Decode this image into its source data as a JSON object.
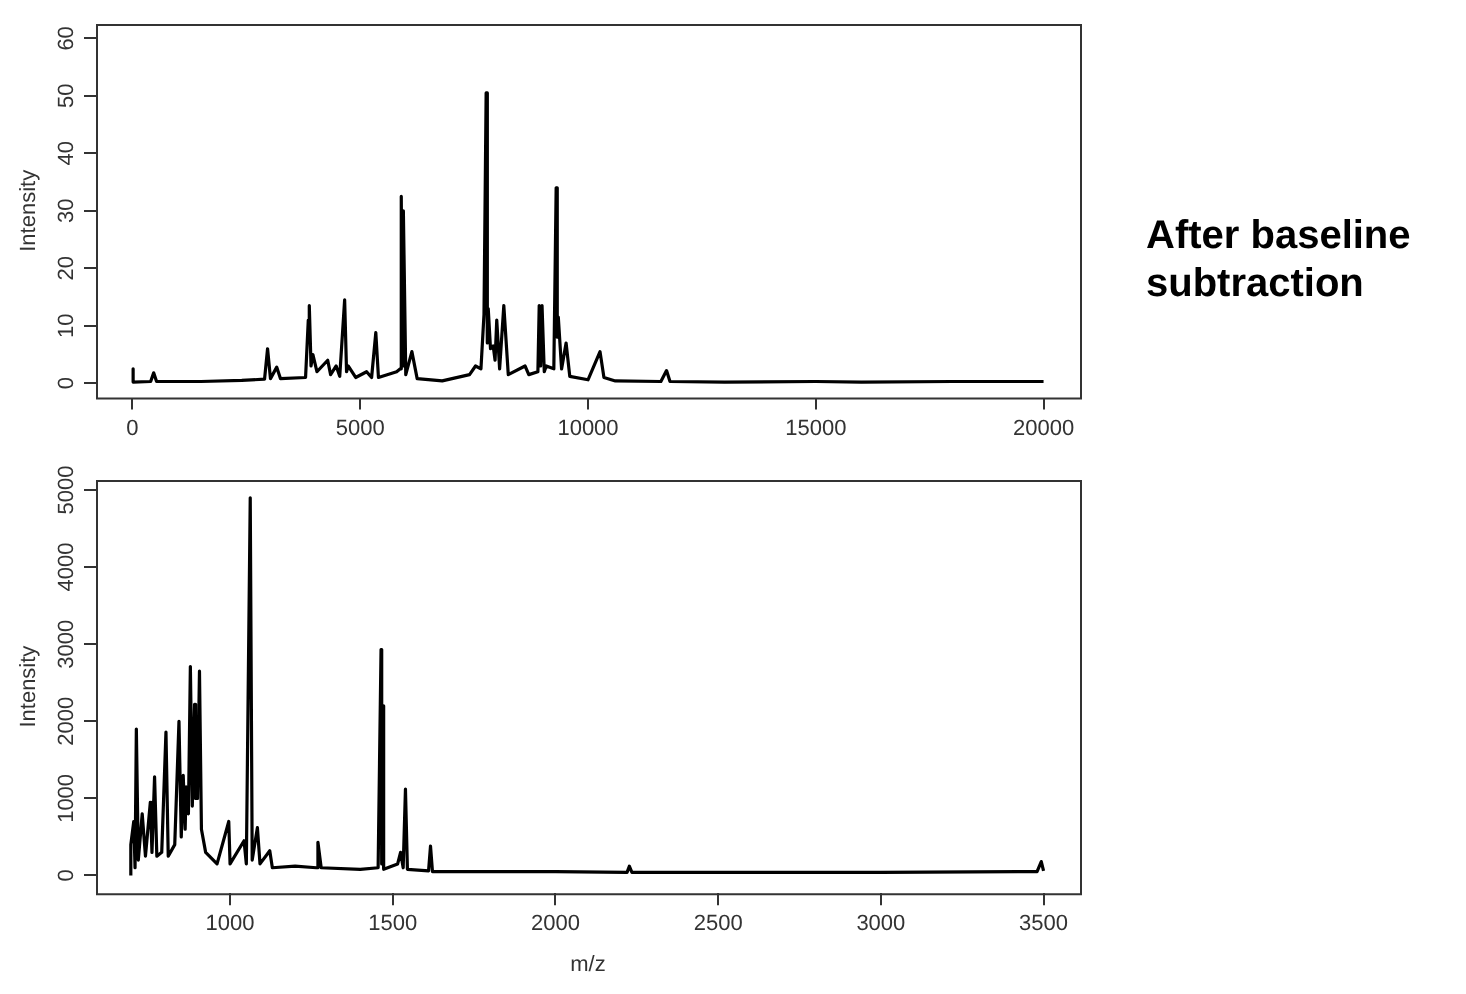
{
  "chart_data": [
    {
      "type": "line",
      "ylabel": "Intensity",
      "color": "#000000",
      "marker": "none",
      "grid": false,
      "legend": false,
      "annotations": [
        "After baseline subtraction"
      ],
      "xlim": [
        -800,
        20800
      ],
      "xticks": [
        0,
        5000,
        10000,
        15000,
        20000
      ],
      "ylim": [
        -2.5,
        62.5
      ],
      "yticks": [
        0,
        10,
        20,
        30,
        40,
        50,
        60
      ],
      "x": [
        0,
        0,
        30,
        400,
        466,
        530,
        1500,
        2400,
        2900,
        2966,
        3030,
        3168,
        3250,
        3800,
        3860,
        3882,
        3920,
        3960,
        4050,
        4286,
        4350,
        4472,
        4550,
        4658,
        4700,
        4736,
        4900,
        5140,
        5250,
        5342,
        5400,
        5800,
        5880,
        5901,
        5925,
        5947,
        6000,
        6134,
        6250,
        6800,
        7400,
        7531,
        7650,
        7717,
        7764,
        7790,
        7810,
        7860,
        7919,
        7960,
        7997,
        8060,
        8152,
        8250,
        8618,
        8700,
        8900,
        8929,
        8960,
        8991,
        9040,
        9084,
        9250,
        9301,
        9325,
        9348,
        9420,
        9519,
        9600,
        10000,
        10264,
        10350,
        10600,
        11600,
        11724,
        11800,
        13000,
        15000,
        16000,
        18000,
        20000
      ],
      "values": [
        0.2,
        2.5,
        0.2,
        0.3,
        1.8,
        0.3,
        0.3,
        0.5,
        0.7,
        6,
        0.8,
        2.8,
        0.8,
        1,
        11,
        13.5,
        3,
        5,
        2,
        4,
        1.5,
        3,
        1.2,
        14.5,
        2,
        3,
        1,
        2,
        1,
        8.8,
        1,
        2,
        2.5,
        32.5,
        3,
        30,
        1.5,
        5.5,
        0.8,
        0.4,
        1.5,
        3,
        2.5,
        12,
        50.5,
        7,
        13,
        6,
        6.5,
        4,
        11,
        2.5,
        13.5,
        1.5,
        3,
        1.5,
        2,
        13.5,
        3,
        13.5,
        2,
        3,
        2.5,
        34,
        8,
        11.5,
        2.5,
        7,
        1.2,
        0.6,
        5.5,
        1,
        0.4,
        0.3,
        2.2,
        0.3,
        0.2,
        0.3,
        0.2,
        0.3,
        0.3
      ]
    },
    {
      "type": "line",
      "xlabel": "m/z",
      "ylabel": "Intensity",
      "color": "#000000",
      "marker": "none",
      "grid": false,
      "legend": false,
      "xlim": [
        588,
        3612
      ],
      "xticks": [
        1000,
        1500,
        2000,
        2500,
        3000,
        3500
      ],
      "ylim": [
        -230,
        5130
      ],
      "yticks": [
        0,
        1000,
        2000,
        3000,
        4000,
        5000
      ],
      "x": [
        695,
        695,
        704,
        708,
        712,
        718,
        730,
        740,
        755,
        760,
        768,
        775,
        790,
        803,
        810,
        830,
        843,
        850,
        856,
        862,
        865,
        872,
        878,
        884,
        891,
        894,
        897,
        900,
        906,
        912,
        925,
        960,
        996,
        1000,
        1043,
        1050,
        1062,
        1068,
        1084,
        1092,
        1122,
        1130,
        1200,
        1265,
        1270,
        1280,
        1400,
        1455,
        1464,
        1466,
        1468,
        1472,
        1515,
        1524,
        1532,
        1539,
        1545,
        1610,
        1616,
        1622,
        2000,
        2220,
        2227,
        2235,
        3000,
        3480,
        3493,
        3500
      ],
      "values": [
        0,
        400,
        700,
        100,
        1900,
        200,
        800,
        250,
        950,
        300,
        1280,
        250,
        300,
        1860,
        250,
        400,
        2000,
        500,
        1300,
        600,
        1150,
        800,
        2710,
        900,
        2220,
        1000,
        1700,
        1000,
        2650,
        600,
        300,
        150,
        700,
        150,
        450,
        150,
        4900,
        200,
        620,
        150,
        320,
        100,
        120,
        100,
        430,
        100,
        80,
        100,
        2930,
        150,
        2200,
        80,
        150,
        300,
        100,
        1120,
        80,
        60,
        380,
        50,
        50,
        40,
        120,
        40,
        40,
        50,
        180,
        60
      ]
    }
  ]
}
